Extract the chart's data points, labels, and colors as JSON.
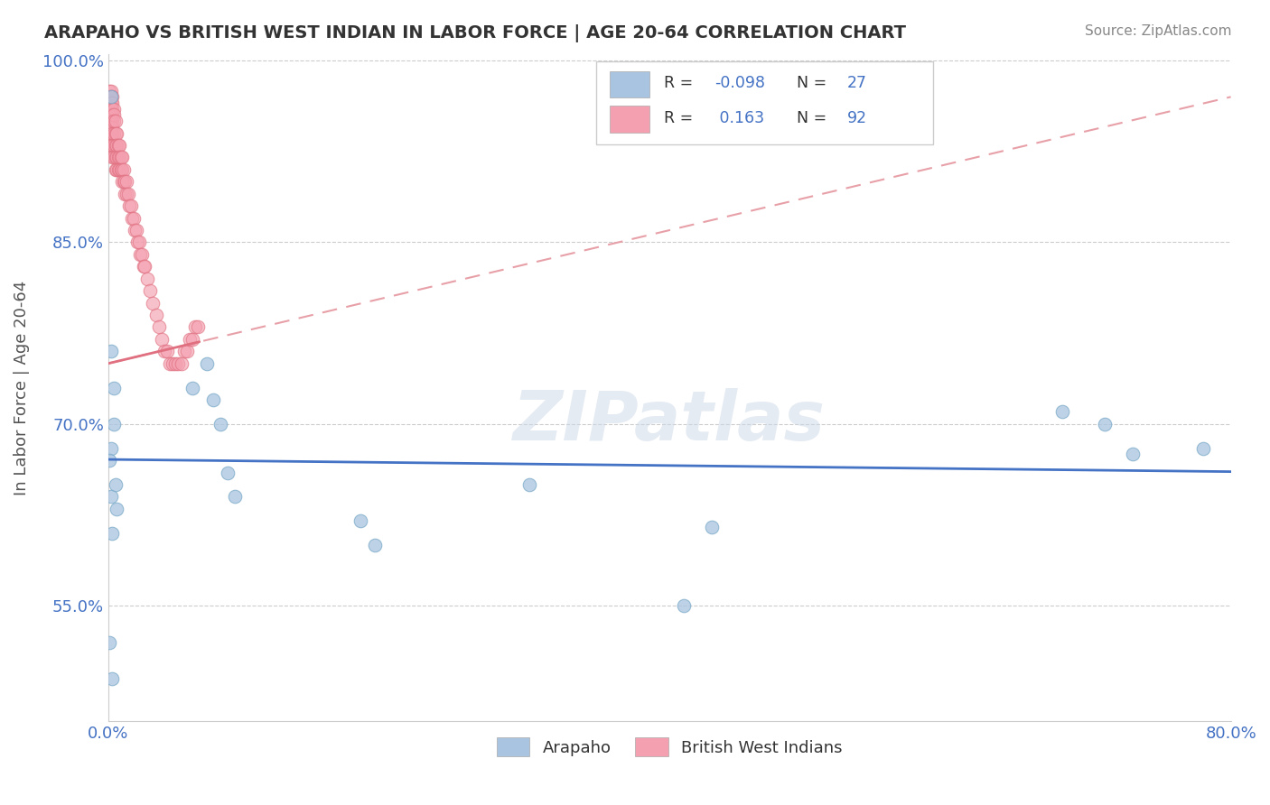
{
  "title": "ARAPAHO VS BRITISH WEST INDIAN IN LABOR FORCE | AGE 20-64 CORRELATION CHART",
  "source_text": "Source: ZipAtlas.com",
  "xlabel": "",
  "ylabel": "In Labor Force | Age 20-64",
  "xlim": [
    0.0,
    0.8
  ],
  "ylim": [
    0.455,
    1.005
  ],
  "xticks": [
    0.0,
    0.1,
    0.2,
    0.3,
    0.4,
    0.5,
    0.6,
    0.7,
    0.8
  ],
  "xticklabels": [
    "0.0%",
    "",
    "",
    "",
    "",
    "",
    "",
    "",
    "80.0%"
  ],
  "yticks": [
    0.55,
    0.7,
    0.85,
    1.0
  ],
  "yticklabels": [
    "55.0%",
    "70.0%",
    "85.0%",
    "100.0%"
  ],
  "arapaho_color": "#a8c4e0",
  "arapaho_edge_color": "#7aaac8",
  "bwi_color": "#f4a0b0",
  "bwi_edge_color": "#e07080",
  "arapaho_line_color": "#4472c4",
  "bwi_line_color": "#e8a0a8",
  "watermark": "ZIPatlas",
  "legend_text_color": "#4472c4",
  "legend_label_color": "#333333",
  "arapaho_x": [
    0.002,
    0.002,
    0.003,
    0.001,
    0.003,
    0.002,
    0.004,
    0.004,
    0.002,
    0.001,
    0.005,
    0.006,
    0.06,
    0.07,
    0.075,
    0.08,
    0.085,
    0.09,
    0.18,
    0.19,
    0.3,
    0.41,
    0.43,
    0.68,
    0.71,
    0.73,
    0.78
  ],
  "arapaho_y": [
    0.97,
    0.64,
    0.61,
    0.52,
    0.49,
    0.76,
    0.73,
    0.7,
    0.68,
    0.67,
    0.65,
    0.63,
    0.73,
    0.75,
    0.72,
    0.7,
    0.66,
    0.64,
    0.62,
    0.6,
    0.65,
    0.55,
    0.615,
    0.71,
    0.7,
    0.675,
    0.68
  ],
  "bwi_x": [
    0.001,
    0.001,
    0.001,
    0.001,
    0.001,
    0.001,
    0.001,
    0.001,
    0.001,
    0.001,
    0.002,
    0.002,
    0.002,
    0.002,
    0.002,
    0.002,
    0.002,
    0.002,
    0.002,
    0.002,
    0.003,
    0.003,
    0.003,
    0.003,
    0.003,
    0.003,
    0.003,
    0.003,
    0.003,
    0.004,
    0.004,
    0.004,
    0.004,
    0.004,
    0.004,
    0.005,
    0.005,
    0.005,
    0.005,
    0.005,
    0.006,
    0.006,
    0.006,
    0.006,
    0.007,
    0.007,
    0.007,
    0.008,
    0.008,
    0.008,
    0.009,
    0.009,
    0.01,
    0.01,
    0.01,
    0.011,
    0.011,
    0.012,
    0.012,
    0.013,
    0.013,
    0.014,
    0.015,
    0.016,
    0.017,
    0.018,
    0.019,
    0.02,
    0.021,
    0.022,
    0.023,
    0.024,
    0.025,
    0.026,
    0.028,
    0.03,
    0.032,
    0.034,
    0.036,
    0.038,
    0.04,
    0.042,
    0.044,
    0.046,
    0.048,
    0.05,
    0.052,
    0.054,
    0.056,
    0.058,
    0.06,
    0.062,
    0.064
  ],
  "bwi_y": [
    0.975,
    0.97,
    0.965,
    0.96,
    0.955,
    0.95,
    0.945,
    0.94,
    0.935,
    0.93,
    0.975,
    0.97,
    0.965,
    0.96,
    0.955,
    0.95,
    0.945,
    0.94,
    0.935,
    0.93,
    0.97,
    0.965,
    0.96,
    0.955,
    0.95,
    0.945,
    0.94,
    0.93,
    0.92,
    0.96,
    0.955,
    0.95,
    0.94,
    0.93,
    0.92,
    0.95,
    0.94,
    0.93,
    0.92,
    0.91,
    0.94,
    0.93,
    0.92,
    0.91,
    0.93,
    0.92,
    0.91,
    0.93,
    0.92,
    0.91,
    0.92,
    0.91,
    0.92,
    0.91,
    0.9,
    0.91,
    0.9,
    0.9,
    0.89,
    0.9,
    0.89,
    0.89,
    0.88,
    0.88,
    0.87,
    0.87,
    0.86,
    0.86,
    0.85,
    0.85,
    0.84,
    0.84,
    0.83,
    0.83,
    0.82,
    0.81,
    0.8,
    0.79,
    0.78,
    0.77,
    0.76,
    0.76,
    0.75,
    0.75,
    0.75,
    0.75,
    0.75,
    0.76,
    0.76,
    0.77,
    0.77,
    0.78,
    0.78
  ]
}
